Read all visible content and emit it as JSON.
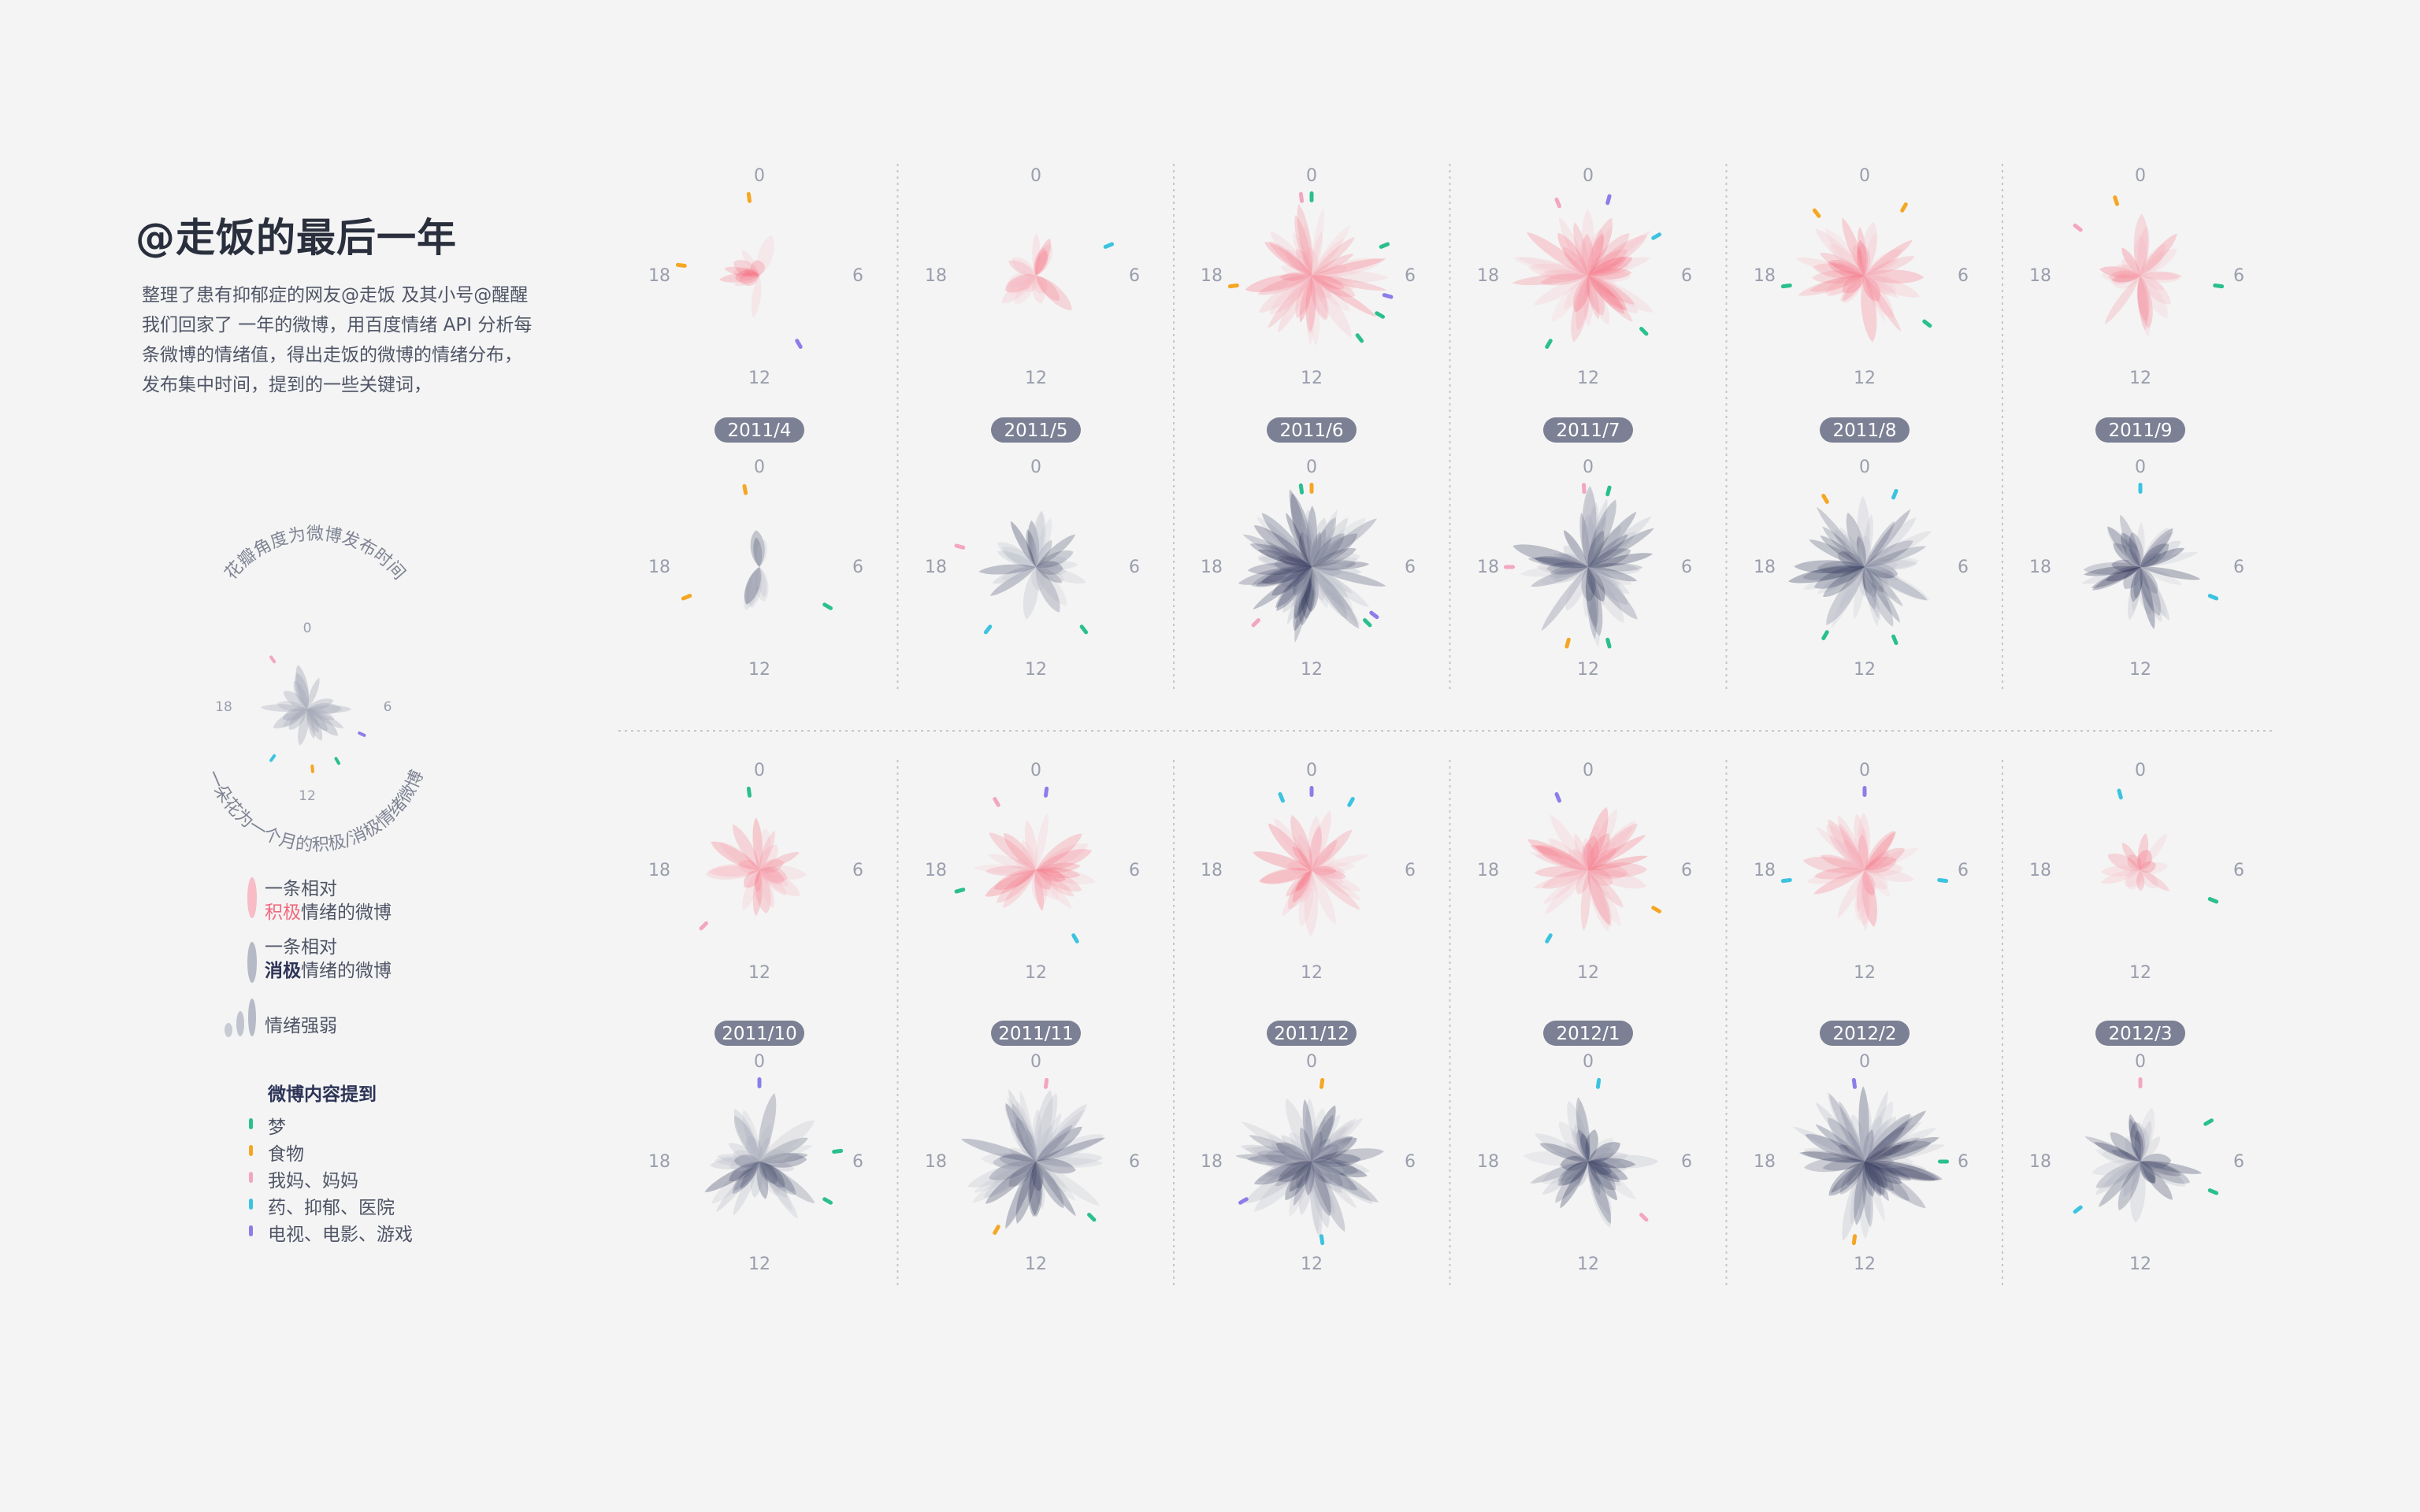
{
  "title": "@走饭的最后一年",
  "description": "整理了患有抑郁症的网友@走饭  及其小号@醒醒我们回家了 一年的微博，用百度情绪 API 分析每条微博的情绪值，得出走饭的微博的情绪分布，发布集中时间，提到的一些关键词，",
  "legend": {
    "arc_top": "花瓣角度为微博发布时间",
    "arc_bottom": "一朵花为一个月的积极/消极情绪微博",
    "hour_labels": [
      "0",
      "6",
      "12",
      "18"
    ],
    "positive_line1": "一条相对",
    "positive_word": "积极",
    "positive_rest": "情绪的微博",
    "negative_line1": "一条相对",
    "negative_word": "消极",
    "negative_rest": "情绪的微博",
    "intensity": "情绪强弱",
    "keywords_title": "微博内容提到",
    "keywords": [
      {
        "label": "梦",
        "color": "#2bbf8e"
      },
      {
        "label": "食物",
        "color": "#f5a623"
      },
      {
        "label": "我妈、妈妈",
        "color": "#f3a6bf"
      },
      {
        "label": "药、抑郁、医院",
        "color": "#3cc3e0"
      },
      {
        "label": "电视、电影、游戏",
        "color": "#8b7ee8"
      }
    ]
  },
  "colors": {
    "positive": "#f76d7e",
    "positive_light": "#f7bcc6",
    "negative": "#2d3457",
    "negative_light": "#b6b9c6",
    "badge": "#7c8094",
    "background": "#f4f4f4"
  },
  "chart_data": {
    "type": "radial-flower",
    "hour_axis": [
      "0",
      "6",
      "12",
      "18"
    ],
    "months": [
      {
        "label": "2011/4",
        "positive": 12,
        "negative": 10,
        "pos_hours": [
          17,
          18,
          19,
          20,
          22,
          23,
          1,
          12
        ],
        "neg_hours": [
          22,
          23,
          0,
          1,
          11,
          12,
          13
        ],
        "keywords_pos": [
          {
            "k": "食物",
            "h": 23.5
          },
          {
            "k": "食物",
            "h": 18.5
          },
          {
            "k": "电视、电影、游戏",
            "h": 10
          }
        ],
        "keywords_neg": [
          {
            "k": "食物",
            "h": 23.3
          },
          {
            "k": "食物",
            "h": 16.5
          },
          {
            "k": "梦",
            "h": 8
          }
        ]
      },
      {
        "label": "2011/5",
        "positive": 20,
        "negative": 28,
        "keywords_pos": [
          {
            "k": "药、抑郁、医院",
            "h": 4.5
          }
        ],
        "keywords_neg": [
          {
            "k": "我妈、妈妈",
            "h": 19
          },
          {
            "k": "药、抑郁、医院",
            "h": 14.5
          },
          {
            "k": "梦",
            "h": 9.5
          }
        ]
      },
      {
        "label": "2011/6",
        "positive": 45,
        "negative": 80,
        "keywords_pos": [
          {
            "k": "梦",
            "h": 0
          },
          {
            "k": "梦",
            "h": 4.5
          },
          {
            "k": "食物",
            "h": 17.5
          },
          {
            "k": "我妈、妈妈",
            "h": 23.5
          },
          {
            "k": "梦",
            "h": 8
          },
          {
            "k": "梦",
            "h": 9.5
          },
          {
            "k": "电视、电影、游戏",
            "h": 7
          }
        ],
        "keywords_neg": [
          {
            "k": "梦",
            "h": 23.5
          },
          {
            "k": "食物",
            "h": 0
          },
          {
            "k": "我妈、妈妈",
            "h": 15
          },
          {
            "k": "梦",
            "h": 9
          },
          {
            "k": "电视、电影、游戏",
            "h": 8.5
          }
        ]
      },
      {
        "label": "2011/7",
        "positive": 50,
        "negative": 60,
        "keywords_pos": [
          {
            "k": "我妈、妈妈",
            "h": 22.5
          },
          {
            "k": "电视、电影、游戏",
            "h": 1
          },
          {
            "k": "药、抑郁、医院",
            "h": 4
          },
          {
            "k": "梦",
            "h": 14
          },
          {
            "k": "梦",
            "h": 9
          }
        ],
        "keywords_neg": [
          {
            "k": "我妈、妈妈",
            "h": 23.8
          },
          {
            "k": "梦",
            "h": 1
          },
          {
            "k": "梦",
            "h": 11
          },
          {
            "k": "食物",
            "h": 13
          },
          {
            "k": "我妈、妈妈",
            "h": 18
          }
        ]
      },
      {
        "label": "2011/8",
        "positive": 40,
        "negative": 55,
        "keywords_pos": [
          {
            "k": "食物",
            "h": 2
          },
          {
            "k": "食物",
            "h": 21.5
          },
          {
            "k": "梦",
            "h": 17.5
          },
          {
            "k": "梦",
            "h": 8.5
          }
        ],
        "keywords_neg": [
          {
            "k": "药、抑郁、医院",
            "h": 1.5
          },
          {
            "k": "食物",
            "h": 22
          },
          {
            "k": "梦",
            "h": 10.5
          },
          {
            "k": "梦",
            "h": 14
          }
        ]
      },
      {
        "label": "2011/9",
        "positive": 30,
        "negative": 40,
        "keywords_pos": [
          {
            "k": "食物",
            "h": 22.8
          },
          {
            "k": "我妈、妈妈",
            "h": 20.5
          },
          {
            "k": "梦",
            "h": 6.5
          }
        ],
        "keywords_neg": [
          {
            "k": "药、抑郁、医院",
            "h": 0
          },
          {
            "k": "药、抑郁、医院",
            "h": 7.5
          }
        ]
      },
      {
        "label": "2011/10",
        "positive": 25,
        "negative": 45,
        "keywords_pos": [
          {
            "k": "梦",
            "h": 23.5
          },
          {
            "k": "我妈、妈妈",
            "h": 15
          }
        ],
        "keywords_neg": [
          {
            "k": "电视、电影、游戏",
            "h": 0
          },
          {
            "k": "梦",
            "h": 5.5
          },
          {
            "k": "梦",
            "h": 8
          }
        ]
      },
      {
        "label": "2011/11",
        "positive": 30,
        "negative": 55,
        "keywords_pos": [
          {
            "k": "电视、电影、游戏",
            "h": 0.5
          },
          {
            "k": "我妈、妈妈",
            "h": 22
          },
          {
            "k": "梦",
            "h": 17
          },
          {
            "k": "药、抑郁、医院",
            "h": 10
          }
        ],
        "keywords_neg": [
          {
            "k": "我妈、妈妈",
            "h": 0.5
          },
          {
            "k": "食物",
            "h": 14
          },
          {
            "k": "梦",
            "h": 9
          }
        ]
      },
      {
        "label": "2011/12",
        "positive": 35,
        "negative": 85,
        "keywords_pos": [
          {
            "k": "电视、电影、游戏",
            "h": 0
          },
          {
            "k": "药、抑郁、医院",
            "h": 22.5
          },
          {
            "k": "药、抑郁、医院",
            "h": 2
          }
        ],
        "keywords_neg": [
          {
            "k": "食物",
            "h": 0.5
          },
          {
            "k": "电视、电影、游戏",
            "h": 16
          },
          {
            "k": "药、抑郁、医院",
            "h": 11.5
          }
        ]
      },
      {
        "label": "2012/1",
        "positive": 40,
        "negative": 45,
        "keywords_pos": [
          {
            "k": "电视、电影、游戏",
            "h": 22.5
          },
          {
            "k": "食物",
            "h": 8
          },
          {
            "k": "药、抑郁、医院",
            "h": 14
          }
        ],
        "keywords_neg": [
          {
            "k": "药、抑郁、医院",
            "h": 0.5
          },
          {
            "k": "我妈、妈妈",
            "h": 9
          }
        ]
      },
      {
        "label": "2012/2",
        "positive": 35,
        "negative": 70,
        "keywords_pos": [
          {
            "k": "药、抑郁、医院",
            "h": 17.5
          },
          {
            "k": "药、抑郁、医院",
            "h": 6.5
          },
          {
            "k": "电视、电影、游戏",
            "h": 0
          }
        ],
        "keywords_neg": [
          {
            "k": "电视、电影、游戏",
            "h": 23.5
          },
          {
            "k": "梦",
            "h": 6
          },
          {
            "k": "食物",
            "h": 12.5
          }
        ]
      },
      {
        "label": "2012/3",
        "positive": 15,
        "negative": 35,
        "keywords_pos": [
          {
            "k": "药、抑郁、医院",
            "h": 23
          },
          {
            "k": "梦",
            "h": 7.5
          }
        ],
        "keywords_neg": [
          {
            "k": "我妈、妈妈",
            "h": 0
          },
          {
            "k": "梦",
            "h": 4
          },
          {
            "k": "梦",
            "h": 7.5
          },
          {
            "k": "药、抑郁、医院",
            "h": 15.5
          }
        ]
      }
    ]
  }
}
